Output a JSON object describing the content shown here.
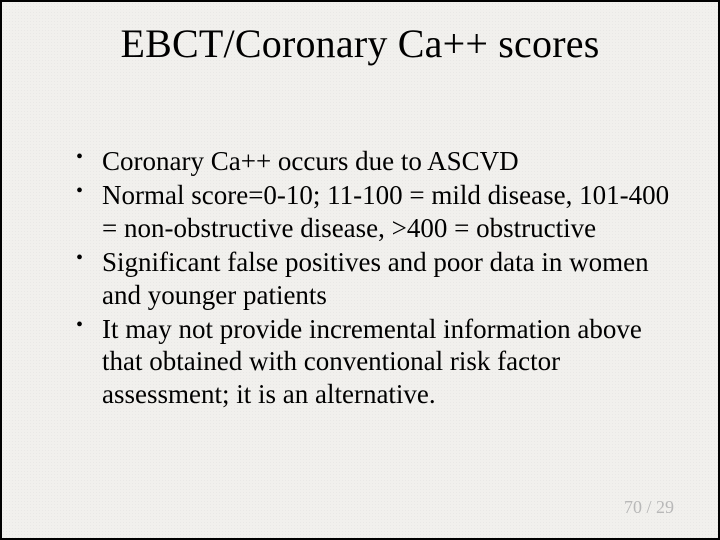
{
  "slide": {
    "title": "EBCT/Coronary Ca++ scores",
    "bullets": [
      "Coronary Ca++ occurs due to ASCVD",
      "Normal score=0-10; 11-100 = mild disease, 101-400 = non-obstructive disease, >400 = obstructive",
      "Significant false positives and poor data in women and younger patients",
      "It may not provide incremental information above that obtained with conventional risk factor assessment; it is an alternative."
    ],
    "footer": {
      "page": "70",
      "separator": " / ",
      "total": "29"
    }
  },
  "style": {
    "background_color": "#f1f0ed",
    "border_color": "#000000",
    "title_fontsize": 40,
    "body_fontsize": 27,
    "footer_color": "#b8b8b8",
    "text_color": "#000000",
    "font_family": "Times New Roman"
  }
}
